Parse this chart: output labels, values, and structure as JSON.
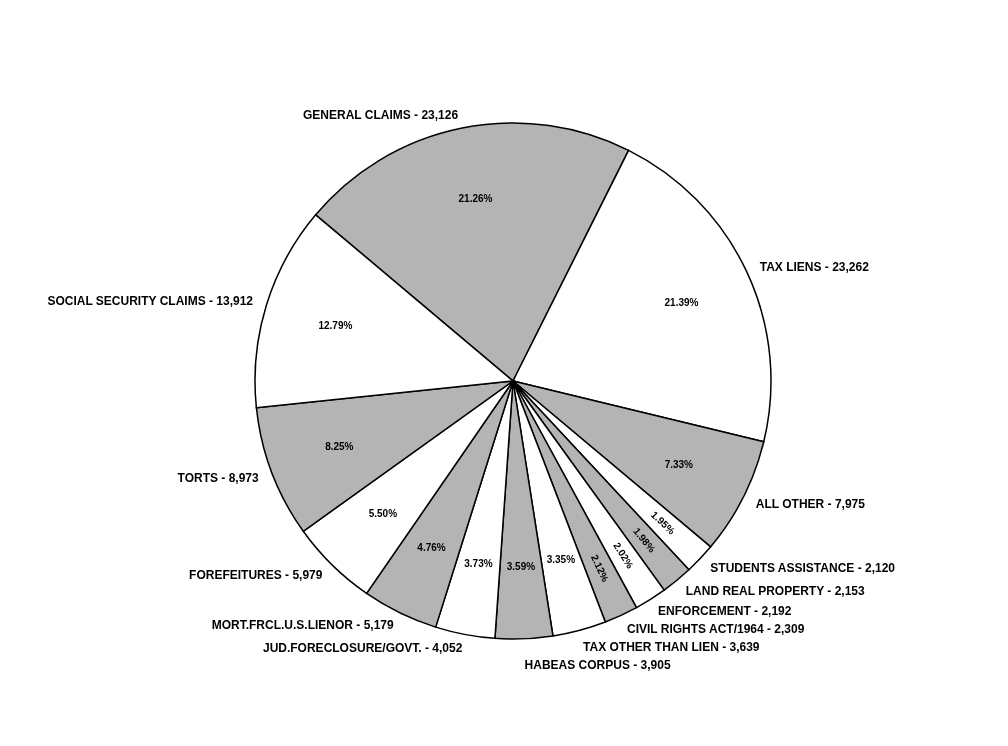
{
  "chart_data": {
    "type": "pie",
    "categories": [
      "GENERAL CLAIMS - 23,126",
      "TAX LIENS - 23,262",
      "ALL OTHER - 7,975",
      "STUDENTS ASSISTANCE - 2,120",
      "LAND REAL PROPERTY - 2,153",
      "ENFORCEMENT - 2,192",
      "CIVIL RIGHTS ACT/1964 - 2,309",
      "TAX OTHER THAN LIEN - 3,639",
      "HABEAS CORPUS - 3,905",
      "JUD.FORECLOSURE/GOVT. - 4,052",
      "MORT.FRCL.U.S.LIENOR - 5,179",
      "FOREFEITURES - 5,979",
      "TORTS - 8,973",
      "SOCIAL SECURITY CLAIMS - 13,912"
    ],
    "values": [
      21.26,
      21.39,
      7.33,
      1.95,
      1.98,
      2.02,
      2.12,
      3.35,
      3.59,
      3.73,
      4.76,
      5.5,
      8.25,
      12.79
    ],
    "value_labels": [
      "21.26%",
      "21.39%",
      "7.33%",
      "1.95%",
      "1.98%",
      "2.02%",
      "2.12%",
      "3.35%",
      "3.59%",
      "3.73%",
      "4.76%",
      "5.50%",
      "8.25%",
      "12.79%"
    ],
    "colors": [
      "#b4b4b4",
      "#ffffff",
      "#b4b4b4",
      "#ffffff",
      "#b4b4b4",
      "#ffffff",
      "#b4b4b4",
      "#ffffff",
      "#b4b4b4",
      "#ffffff",
      "#b4b4b4",
      "#ffffff",
      "#b4b4b4",
      "#ffffff"
    ],
    "legend": false
  }
}
